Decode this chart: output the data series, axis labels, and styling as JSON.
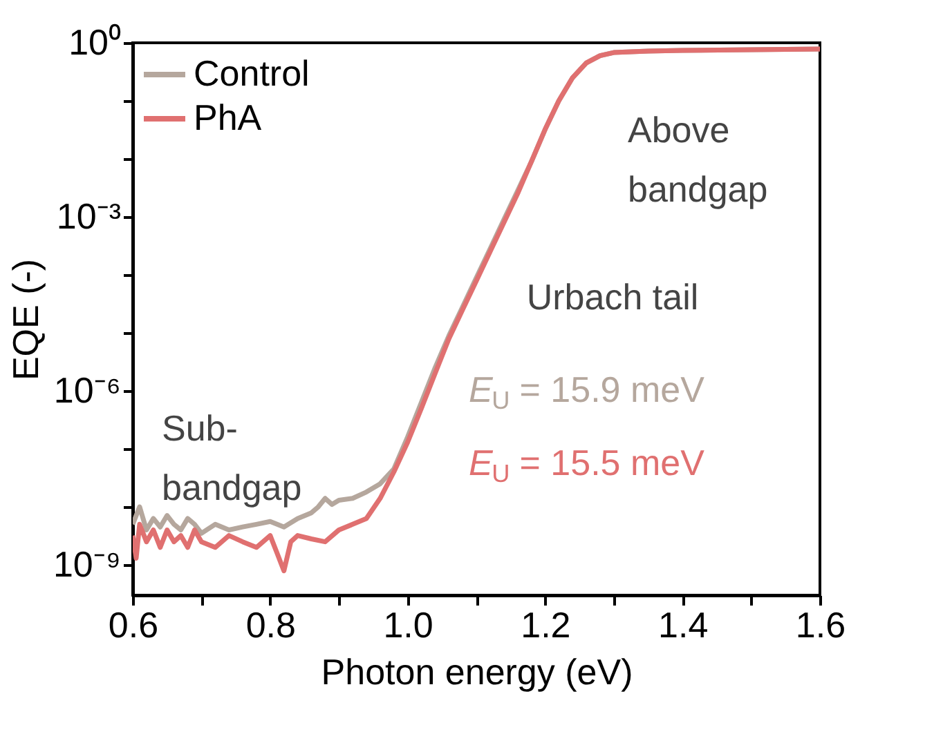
{
  "chart_data": {
    "type": "line",
    "xlabel": "Photon energy (eV)",
    "ylabel": "EQE (-)",
    "log": "y",
    "x": [
      0.6,
      0.61,
      0.62,
      0.63,
      0.64,
      0.65,
      0.66,
      0.67,
      0.68,
      0.69,
      0.7,
      0.72,
      0.74,
      0.76,
      0.78,
      0.8,
      0.82,
      0.84,
      0.86,
      0.87,
      0.88,
      0.89,
      0.9,
      0.92,
      0.94,
      0.96,
      0.98,
      1.0,
      1.02,
      1.04,
      1.06,
      1.08,
      1.1,
      1.12,
      1.14,
      1.16,
      1.18,
      1.2,
      1.22,
      1.24,
      1.26,
      1.28,
      1.3,
      1.35,
      1.4,
      1.5,
      1.6
    ],
    "series": [
      {
        "name": "Control",
        "color": "#b5a79d",
        "values": [
          5e-09,
          1e-08,
          4e-09,
          6.3e-09,
          4.5e-09,
          7.1e-09,
          5e-09,
          4e-09,
          6.3e-09,
          5e-09,
          3.5e-09,
          5e-09,
          4e-09,
          4.5e-09,
          5e-09,
          5.6e-09,
          4.5e-09,
          6.3e-09,
          7.9e-09,
          1e-08,
          1.4e-08,
          1.1e-08,
          1.3e-08,
          1.4e-08,
          1.8e-08,
          2.5e-08,
          4.5e-08,
          1.6e-07,
          6.3e-07,
          2.5e-06,
          8.9e-06,
          2.8e-05,
          8.9e-05,
          0.00028,
          0.00089,
          0.0028,
          0.0089,
          0.032,
          0.1,
          0.25,
          0.45,
          0.6,
          0.68,
          0.72,
          0.74,
          0.76,
          0.78
        ]
      },
      {
        "name": "PhA",
        "color": "#e07070",
        "x": [
          0.6,
          0.605,
          0.61,
          0.62,
          0.63,
          0.64,
          0.65,
          0.66,
          0.67,
          0.68,
          0.69,
          0.7,
          0.72,
          0.74,
          0.76,
          0.78,
          0.8,
          0.81,
          0.82,
          0.83,
          0.84,
          0.86,
          0.88,
          0.9,
          0.92,
          0.94,
          0.96,
          0.98,
          1.0,
          1.02,
          1.04,
          1.06,
          1.08,
          1.1,
          1.12,
          1.14,
          1.16,
          1.18,
          1.2,
          1.22,
          1.24,
          1.26,
          1.28,
          1.3,
          1.35,
          1.4,
          1.5,
          1.6
        ],
        "values": [
          3.2e-09,
          1.3e-09,
          5e-09,
          2.5e-09,
          4e-09,
          2e-09,
          4e-09,
          2.5e-09,
          3.2e-09,
          2e-09,
          4e-09,
          2.5e-09,
          2e-09,
          3.2e-09,
          2.5e-09,
          2e-09,
          3.2e-09,
          1.6e-09,
          7.9e-10,
          2.5e-09,
          3.2e-09,
          2.8e-09,
          2.5e-09,
          4e-09,
          5e-09,
          6.3e-09,
          1.4e-08,
          4e-08,
          1.3e-07,
          5e-07,
          2e-06,
          7.9e-06,
          2.5e-05,
          7.9e-05,
          0.00025,
          0.00079,
          0.0025,
          0.0089,
          0.032,
          0.1,
          0.25,
          0.45,
          0.6,
          0.68,
          0.72,
          0.74,
          0.76,
          0.78
        ]
      }
    ],
    "xlim": [
      0.6,
      1.6
    ],
    "xticks": [
      0.6,
      {
        "value": 0.7,
        "label": null
      },
      0.8,
      {
        "value": 0.9,
        "label": null
      },
      {
        "value": 1.0,
        "label": "1.0"
      },
      {
        "value": 1.1,
        "label": null
      },
      1.2,
      {
        "value": 1.3,
        "label": null
      },
      1.4,
      {
        "value": 1.5,
        "label": null
      },
      1.6
    ],
    "ylim": [
      3e-10,
      1
    ],
    "yticks": [
      {
        "value": 1,
        "label": "10⁰"
      },
      {
        "value": 0.1,
        "label": null
      },
      {
        "value": 0.01,
        "label": null
      },
      {
        "value": 0.001,
        "label": "10⁻³"
      },
      {
        "value": 0.0001,
        "label": null
      },
      {
        "value": 1e-05,
        "label": null
      },
      {
        "value": 1e-06,
        "label": "10⁻⁶"
      },
      {
        "value": 1e-07,
        "label": null
      },
      {
        "value": 1e-08,
        "label": null
      },
      {
        "value": 1e-09,
        "label": "10⁻⁹"
      }
    ],
    "grid": false,
    "legend": "top left",
    "line_style": "solid",
    "marker": "none",
    "annotations": [
      "Above\nbandgap",
      "Urbach tail",
      "E$_{U}$ = 15.9 meV",
      "E$_{U}$ = 15.5 meV",
      "Sub-\nbandgap"
    ]
  }
}
